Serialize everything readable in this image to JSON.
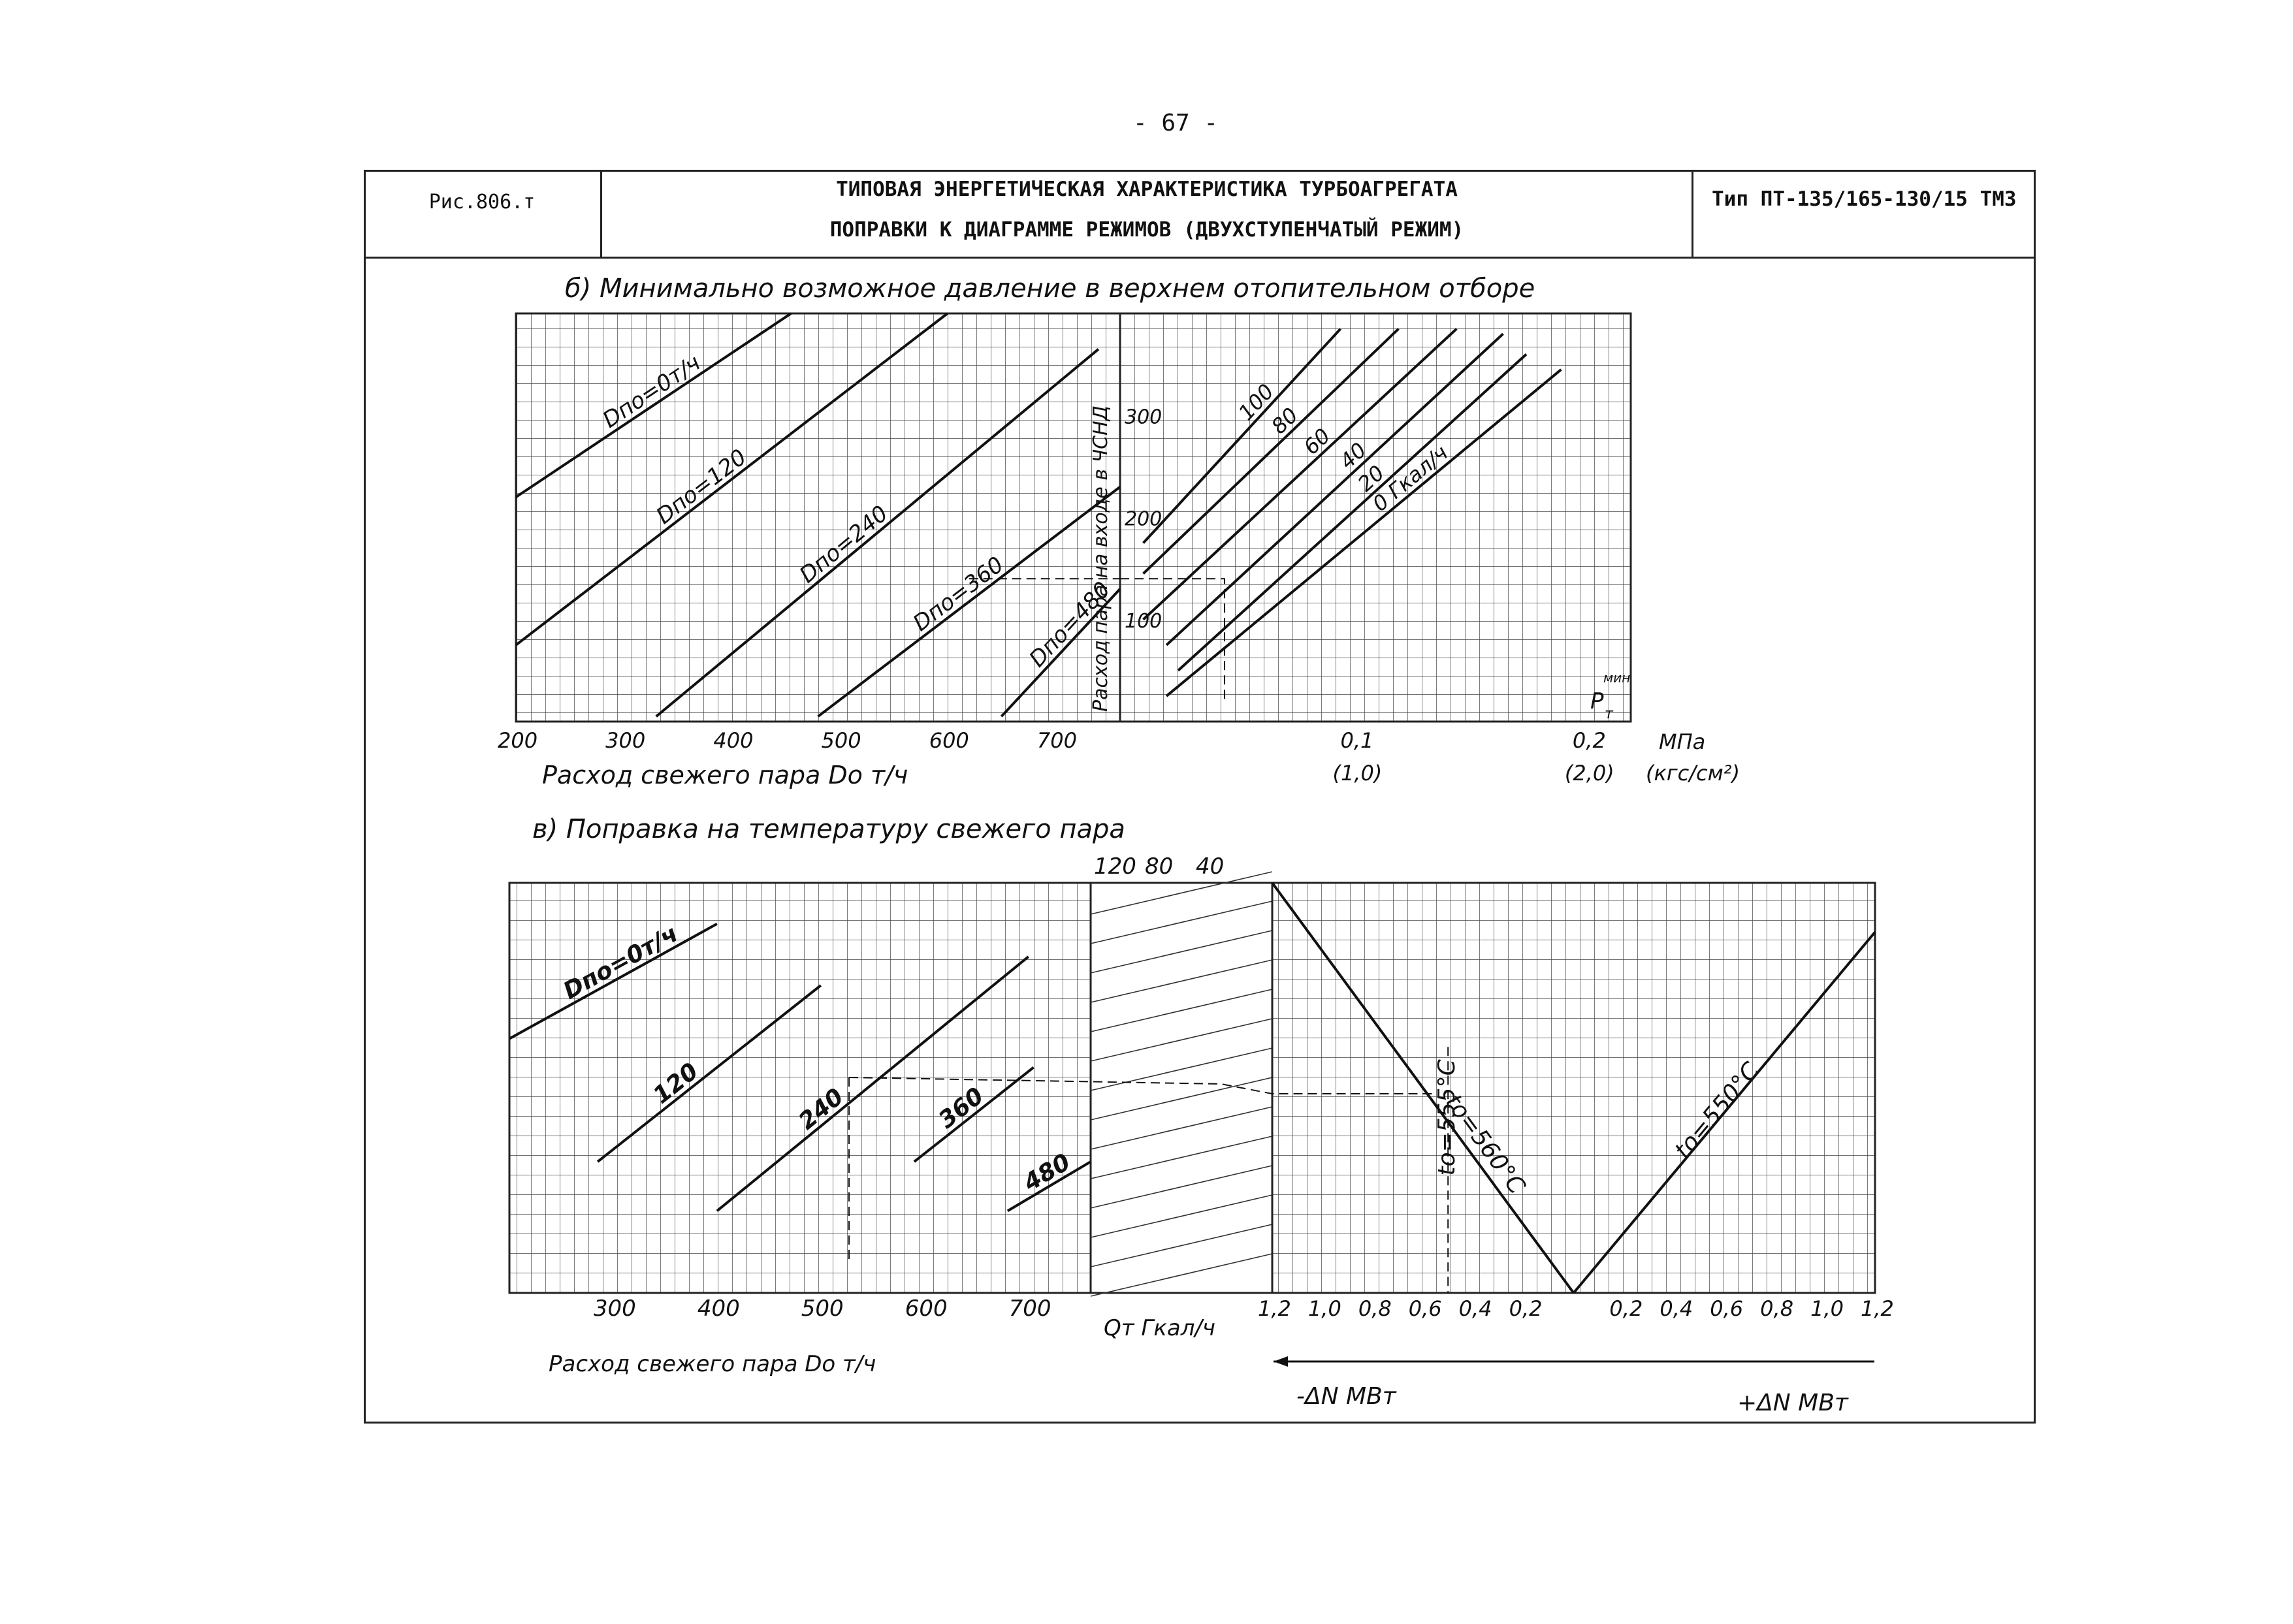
{
  "page_number": "- 67 -",
  "header": {
    "fig_label": "Рис.806.т",
    "title_line1": "ТИПОВАЯ ЭНЕРГЕТИЧЕСКАЯ ХАРАКТЕРИСТИКА ТУРБОАГРЕГАТА",
    "title_line2": "ПОПРАВКИ К ДИАГРАММЕ РЕЖИМОВ (ДВУХСТУПЕНЧАТЫЙ РЕЖИМ)",
    "type": "Тип ПТ-135/165-130/15 ТМЗ"
  },
  "chart_data": [
    {
      "type": "line",
      "title": "б) Минимально возможное давление в верхнем отопительном отборе",
      "panel": "left",
      "xlabel": "Расход свежего пара  Do  т/ч",
      "x_ticks": [
        "200",
        "300",
        "400",
        "500",
        "600",
        "700"
      ],
      "xlim": [
        200,
        760
      ],
      "ylabel": "Расход пара на входе в ЧСНД",
      "ylim": [
        0,
        400
      ],
      "series": [
        {
          "name": "Dпо=0 т/ч",
          "label": "Dпо=0т/ч",
          "x": [
            200,
            455
          ],
          "y": [
            220,
            400
          ]
        },
        {
          "name": "Dпо=120",
          "label": "Dпо=120",
          "x": [
            200,
            600
          ],
          "y": [
            75,
            400
          ]
        },
        {
          "name": "Dпо=240",
          "label": "Dпо=240",
          "x": [
            330,
            740
          ],
          "y": [
            5,
            365
          ]
        },
        {
          "name": "Dпо=360",
          "label": "Dпо=360",
          "x": [
            480,
            760
          ],
          "y": [
            5,
            230
          ]
        },
        {
          "name": "Dпо=480",
          "label": "Dпо=480",
          "x": [
            650,
            760
          ],
          "y": [
            5,
            130
          ]
        }
      ],
      "example_path": {
        "x": [
          620,
          760
        ],
        "y": [
          140,
          140
        ]
      }
    },
    {
      "type": "line",
      "panel": "right",
      "xlabel": "",
      "x_ticks": [
        "0,1",
        "0,2"
      ],
      "x_ticks_kgf": [
        "(1,0)",
        "(2,0)"
      ],
      "x_unit": "МПа",
      "x_unit_kgf": "(кгс/см²)",
      "xlim": [
        0.0,
        0.22
      ],
      "y_ticks": [
        "100",
        "200",
        "300"
      ],
      "ylim": [
        0,
        400
      ],
      "axis_corner_label": "P",
      "axis_corner_sub": "т",
      "axis_corner_sup": "мин",
      "series": [
        {
          "name": "100",
          "label": "100",
          "x": [
            0.01,
            0.095
          ],
          "y": [
            175,
            385
          ]
        },
        {
          "name": "80",
          "label": "80",
          "x": [
            0.01,
            0.12
          ],
          "y": [
            145,
            385
          ]
        },
        {
          "name": "60",
          "label": "60",
          "x": [
            0.01,
            0.145
          ],
          "y": [
            100,
            385
          ]
        },
        {
          "name": "40",
          "label": "40",
          "x": [
            0.02,
            0.165
          ],
          "y": [
            75,
            380
          ]
        },
        {
          "name": "20",
          "label": "20",
          "x": [
            0.025,
            0.175
          ],
          "y": [
            50,
            360
          ]
        },
        {
          "name": "0 Гкал/ч",
          "label": "0 Гкал/ч",
          "x": [
            0.02,
            0.19
          ],
          "y": [
            25,
            345
          ]
        }
      ],
      "example_path": {
        "x": [
          0.0,
          0.045,
          0.045
        ],
        "y": [
          140,
          140,
          20
        ]
      }
    },
    {
      "type": "line",
      "title": "в) Поправка на температуру свежего пара",
      "panel": "left",
      "xlabel": "Расход свежего пара  Do  т/ч",
      "x_ticks": [
        "300",
        "400",
        "500",
        "600",
        "700"
      ],
      "xlim": [
        200,
        760
      ],
      "series": [
        {
          "name": "Dпо=0 т/ч",
          "label": "Dпо=0т/ч",
          "x": [
            200,
            400
          ],
          "y": [
            0.62,
            0.9
          ]
        },
        {
          "name": "120",
          "label": "120",
          "x": [
            285,
            500
          ],
          "y": [
            0.32,
            0.75
          ]
        },
        {
          "name": "240",
          "label": "240",
          "x": [
            400,
            700
          ],
          "y": [
            0.2,
            0.82
          ]
        },
        {
          "name": "360",
          "label": "360",
          "x": [
            590,
            705
          ],
          "y": [
            0.32,
            0.55
          ]
        },
        {
          "name": "480",
          "label": "480",
          "x": [
            680,
            760
          ],
          "y": [
            0.2,
            0.32
          ]
        }
      ]
    },
    {
      "type": "line",
      "panel": "middle",
      "top_ticks": [
        "120",
        "80",
        "40"
      ],
      "xlabel": "Qт  Гкал/ч"
    },
    {
      "type": "line",
      "panel": "right",
      "x_ticks_left": [
        "1,2",
        "1,0",
        "0,8",
        "0,6",
        "0,4",
        "0,2"
      ],
      "x_ticks_right": [
        "0,2",
        "0,4",
        "0,6",
        "0,8",
        "1,0",
        "1,2"
      ],
      "xlim": [
        -1.2,
        1.2
      ],
      "xlabel_neg": "-ΔN МВт",
      "xlabel_pos": "+ΔN МВт",
      "series": [
        {
          "name": "to=560°C",
          "label": "tо=560°С",
          "x": [
            -1.2,
            0.0
          ],
          "y": [
            1.0,
            0.0
          ]
        },
        {
          "name": "to=555°C",
          "label": "tо=555°С",
          "x": [
            -0.5,
            -0.5
          ],
          "y": [
            0.6,
            0.0
          ]
        },
        {
          "name": "to=550°C",
          "label": "tо=550°С",
          "x": [
            0.0,
            1.2
          ],
          "y": [
            0.0,
            0.88
          ]
        }
      ]
    }
  ]
}
